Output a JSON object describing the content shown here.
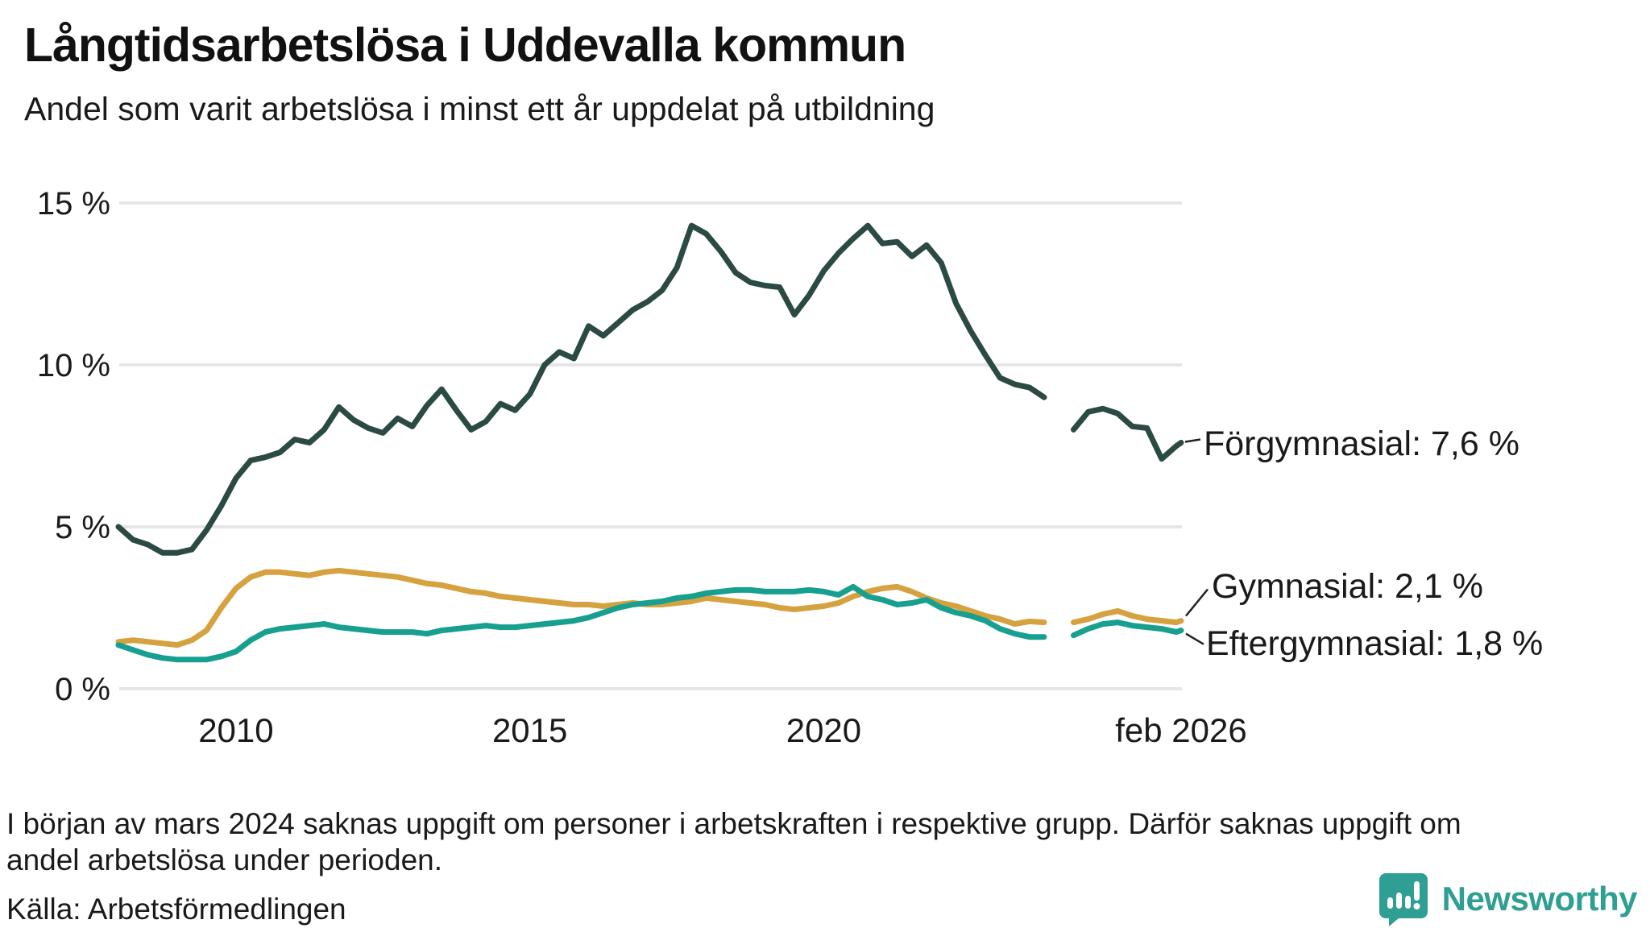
{
  "header": {
    "title": "Långtidsarbetslösa i Uddevalla kommun",
    "subtitle": "Andel som varit arbetslösa i minst ett år uppdelat på utbildning"
  },
  "footer": {
    "footnote_line1": "I början av mars 2024 saknas uppgift om personer i arbetskraften i respektive grupp. Därför saknas uppgift om",
    "footnote_line2": "andel arbetslösa under perioden.",
    "source": "Källa: Arbetsförmedlingen",
    "logo_text": "Newsworthy",
    "logo_icon": "newsworthy-speech-bubble-bar-chart-icon",
    "logo_color": "#2f9e93"
  },
  "colors": {
    "forgymnasial": "#2c4a44",
    "gymnasial": "#d6a23f",
    "eftergymnasial": "#17a090",
    "gridline": "#e6e6ea",
    "text": "#1a1a1a",
    "connector": "#222222"
  },
  "chart_data": {
    "type": "line",
    "title": "Långtidsarbetslösa i Uddevalla kommun",
    "subtitle": "Andel som varit arbetslösa i minst ett år uppdelat på utbildning",
    "unit": "%",
    "xlim": [
      2008.0,
      2026.08
    ],
    "ylim": [
      0,
      15
    ],
    "grid": "horizontal",
    "missing_data_gap_x": 2024.0,
    "yticks": [
      {
        "value": 0,
        "label": "0 %"
      },
      {
        "value": 5,
        "label": "5 %"
      },
      {
        "value": 10,
        "label": "10 %"
      },
      {
        "value": 15,
        "label": "15 %"
      }
    ],
    "xticks": [
      {
        "value": 2010,
        "label": "2010"
      },
      {
        "value": 2015,
        "label": "2015"
      },
      {
        "value": 2020,
        "label": "2020"
      },
      {
        "value": 2026.08,
        "label": "feb 2026"
      }
    ],
    "x": [
      2008.0,
      2008.25,
      2008.5,
      2008.75,
      2009.0,
      2009.25,
      2009.5,
      2009.75,
      2010.0,
      2010.25,
      2010.5,
      2010.75,
      2011.0,
      2011.25,
      2011.5,
      2011.75,
      2012.0,
      2012.25,
      2012.5,
      2012.75,
      2013.0,
      2013.25,
      2013.5,
      2013.75,
      2014.0,
      2014.25,
      2014.5,
      2014.75,
      2015.0,
      2015.25,
      2015.5,
      2015.75,
      2016.0,
      2016.25,
      2016.5,
      2016.75,
      2017.0,
      2017.25,
      2017.5,
      2017.75,
      2018.0,
      2018.25,
      2018.5,
      2018.75,
      2019.0,
      2019.25,
      2019.5,
      2019.75,
      2020.0,
      2020.25,
      2020.5,
      2020.75,
      2021.0,
      2021.25,
      2021.5,
      2021.75,
      2022.0,
      2022.25,
      2022.5,
      2022.75,
      2023.0,
      2023.25,
      2023.5,
      2023.75,
      2024.0,
      2024.25,
      2024.5,
      2024.75,
      2025.0,
      2025.25,
      2025.5,
      2025.75,
      2026.0,
      2026.08
    ],
    "series": [
      {
        "name": "Förgymnasial",
        "end_label": "Förgymnasial: 7,6 %",
        "end_value": 7.6,
        "color": "#2c4a44",
        "values": [
          5.0,
          4.6,
          4.45,
          4.2,
          4.2,
          4.3,
          4.9,
          5.65,
          6.5,
          7.05,
          7.15,
          7.3,
          7.7,
          7.6,
          8.0,
          8.7,
          8.3,
          8.05,
          7.9,
          8.35,
          8.1,
          8.75,
          9.25,
          8.6,
          8.0,
          8.25,
          8.8,
          8.6,
          9.1,
          10.0,
          10.4,
          10.2,
          11.2,
          10.9,
          11.3,
          11.7,
          11.95,
          12.3,
          13.0,
          14.3,
          14.05,
          13.5,
          12.85,
          12.55,
          12.45,
          12.4,
          11.55,
          12.15,
          12.9,
          13.45,
          13.9,
          14.3,
          13.75,
          13.8,
          13.35,
          13.7,
          13.15,
          11.9,
          11.05,
          10.3,
          9.6,
          9.4,
          9.3,
          9.0,
          null,
          8.0,
          8.55,
          8.65,
          8.5,
          8.1,
          8.05,
          7.1,
          7.5,
          7.6
        ]
      },
      {
        "name": "Gymnasial",
        "end_label": "Gymnasial: 2,1 %",
        "end_value": 2.1,
        "color": "#d6a23f",
        "values": [
          1.45,
          1.5,
          1.45,
          1.4,
          1.35,
          1.5,
          1.8,
          2.5,
          3.1,
          3.45,
          3.6,
          3.6,
          3.55,
          3.5,
          3.6,
          3.65,
          3.6,
          3.55,
          3.5,
          3.45,
          3.35,
          3.25,
          3.2,
          3.1,
          3.0,
          2.95,
          2.85,
          2.8,
          2.75,
          2.7,
          2.65,
          2.6,
          2.6,
          2.55,
          2.6,
          2.65,
          2.6,
          2.6,
          2.65,
          2.7,
          2.8,
          2.75,
          2.7,
          2.65,
          2.6,
          2.5,
          2.45,
          2.5,
          2.55,
          2.65,
          2.85,
          3.0,
          3.1,
          3.15,
          3.0,
          2.8,
          2.65,
          2.55,
          2.4,
          2.25,
          2.15,
          2.0,
          2.08,
          2.05,
          null,
          2.05,
          2.15,
          2.3,
          2.4,
          2.25,
          2.15,
          2.1,
          2.05,
          2.1
        ]
      },
      {
        "name": "Eftergymnasial",
        "end_label": "Eftergymnasial: 1,8 %",
        "end_value": 1.8,
        "color": "#17a090",
        "values": [
          1.35,
          1.2,
          1.05,
          0.95,
          0.9,
          0.9,
          0.9,
          1.0,
          1.15,
          1.5,
          1.75,
          1.85,
          1.9,
          1.95,
          2.0,
          1.9,
          1.85,
          1.8,
          1.75,
          1.75,
          1.75,
          1.7,
          1.8,
          1.85,
          1.9,
          1.95,
          1.9,
          1.9,
          1.95,
          2.0,
          2.05,
          2.1,
          2.2,
          2.35,
          2.5,
          2.6,
          2.65,
          2.7,
          2.8,
          2.85,
          2.95,
          3.0,
          3.05,
          3.05,
          3.0,
          3.0,
          3.0,
          3.05,
          3.0,
          2.9,
          3.15,
          2.85,
          2.75,
          2.6,
          2.65,
          2.75,
          2.5,
          2.35,
          2.25,
          2.1,
          1.85,
          1.7,
          1.6,
          1.6,
          null,
          1.65,
          1.85,
          2.0,
          2.05,
          1.95,
          1.9,
          1.85,
          1.75,
          1.8
        ]
      }
    ]
  }
}
